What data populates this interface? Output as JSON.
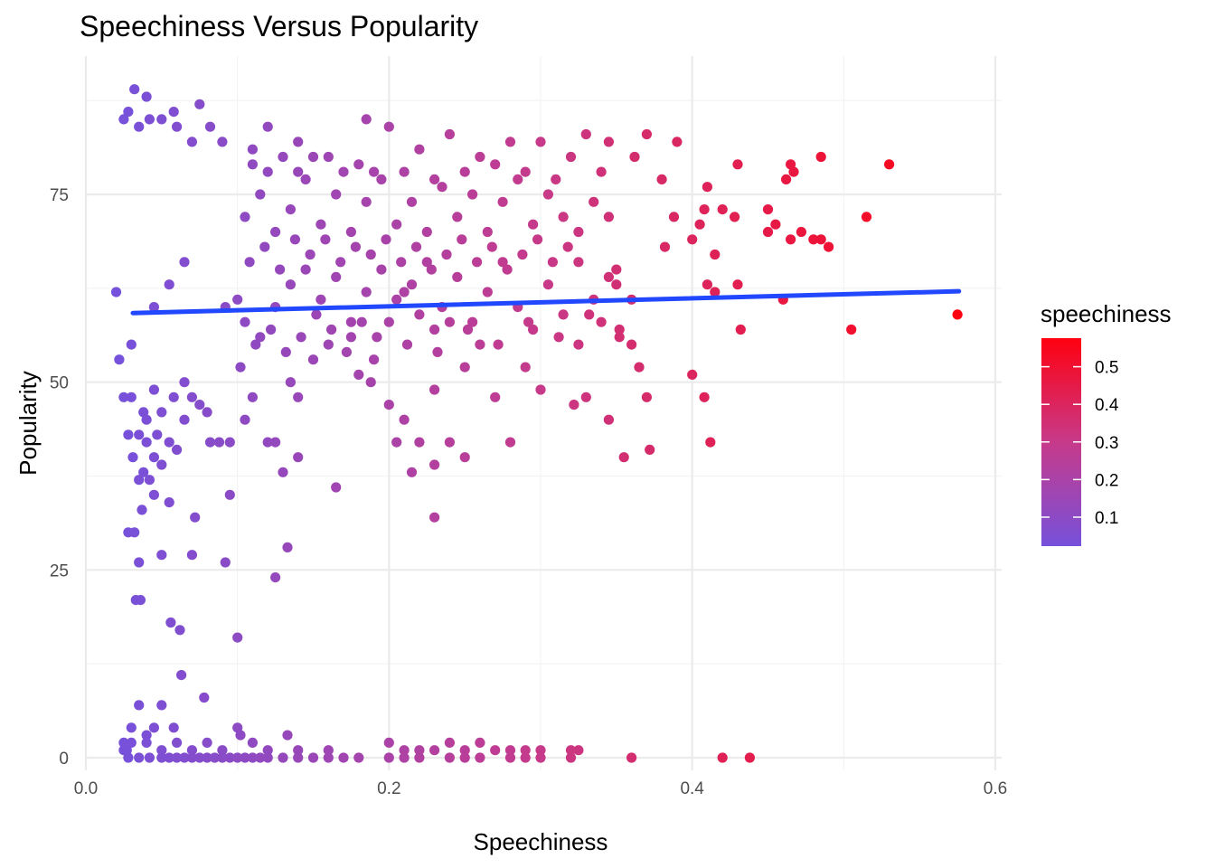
{
  "colors": {
    "low": "#7651db",
    "high": "#ff0010",
    "trend": "#2148ff",
    "grid_major": "#ebebeb",
    "grid_minor": "#f3f3f3"
  },
  "chart_data": {
    "type": "scatter",
    "title": "Speechiness Versus Popularity",
    "xlabel": "Speechiness",
    "ylabel": "Popularity",
    "xlim": [
      0.0,
      0.6
    ],
    "ylim": [
      0,
      90
    ],
    "x_ticks": [
      0.0,
      0.2,
      0.4,
      0.6
    ],
    "x_tick_labels": [
      "0.0",
      "0.2",
      "0.4",
      "0.6"
    ],
    "y_ticks": [
      0,
      25,
      50,
      75
    ],
    "y_tick_labels": [
      "0",
      "25",
      "50",
      "75"
    ],
    "grid": true,
    "legend": {
      "title": "speechiness",
      "placement": "right",
      "type": "continuous-color",
      "range": [
        0.023,
        0.576
      ],
      "ticks": [
        0.1,
        0.2,
        0.3,
        0.4,
        0.5
      ],
      "tick_labels": [
        "0.1",
        "0.2",
        "0.3",
        "0.4",
        "0.5"
      ]
    },
    "trend_line": {
      "type": "linear",
      "x": [
        0.031,
        0.576
      ],
      "y": [
        59.2,
        62.1
      ]
    },
    "points": [
      [
        0.032,
        89
      ],
      [
        0.04,
        88
      ],
      [
        0.075,
        87
      ],
      [
        0.058,
        86
      ],
      [
        0.028,
        86
      ],
      [
        0.025,
        85
      ],
      [
        0.05,
        85
      ],
      [
        0.042,
        85
      ],
      [
        0.035,
        84
      ],
      [
        0.06,
        84
      ],
      [
        0.082,
        84
      ],
      [
        0.12,
        84
      ],
      [
        0.185,
        85
      ],
      [
        0.2,
        84
      ],
      [
        0.07,
        82
      ],
      [
        0.09,
        82
      ],
      [
        0.11,
        81
      ],
      [
        0.14,
        82
      ],
      [
        0.15,
        80
      ],
      [
        0.16,
        80
      ],
      [
        0.18,
        79
      ],
      [
        0.22,
        81
      ],
      [
        0.24,
        83
      ],
      [
        0.26,
        80
      ],
      [
        0.28,
        82
      ],
      [
        0.3,
        82
      ],
      [
        0.33,
        83
      ],
      [
        0.345,
        82
      ],
      [
        0.37,
        83
      ],
      [
        0.39,
        82
      ],
      [
        0.362,
        80
      ],
      [
        0.38,
        77
      ],
      [
        0.31,
        77
      ],
      [
        0.32,
        80
      ],
      [
        0.34,
        78
      ],
      [
        0.43,
        79
      ],
      [
        0.465,
        79
      ],
      [
        0.467,
        78
      ],
      [
        0.462,
        77
      ],
      [
        0.485,
        80
      ],
      [
        0.53,
        79
      ],
      [
        0.41,
        76
      ],
      [
        0.408,
        73
      ],
      [
        0.42,
        73
      ],
      [
        0.428,
        72
      ],
      [
        0.45,
        73
      ],
      [
        0.455,
        71
      ],
      [
        0.45,
        70
      ],
      [
        0.465,
        69
      ],
      [
        0.472,
        70
      ],
      [
        0.48,
        69
      ],
      [
        0.485,
        69
      ],
      [
        0.49,
        68
      ],
      [
        0.515,
        72
      ],
      [
        0.415,
        67
      ],
      [
        0.4,
        69
      ],
      [
        0.405,
        71
      ],
      [
        0.388,
        72
      ],
      [
        0.382,
        68
      ],
      [
        0.41,
        63
      ],
      [
        0.415,
        62
      ],
      [
        0.43,
        63
      ],
      [
        0.46,
        61
      ],
      [
        0.575,
        59
      ],
      [
        0.505,
        57
      ],
      [
        0.432,
        57
      ],
      [
        0.4,
        51
      ],
      [
        0.408,
        48
      ],
      [
        0.412,
        42
      ],
      [
        0.37,
        48
      ],
      [
        0.372,
        41
      ],
      [
        0.355,
        40
      ],
      [
        0.345,
        45
      ],
      [
        0.33,
        48
      ],
      [
        0.322,
        47
      ],
      [
        0.365,
        52
      ],
      [
        0.36,
        55
      ],
      [
        0.35,
        63
      ],
      [
        0.35,
        65
      ],
      [
        0.36,
        61
      ],
      [
        0.352,
        57
      ],
      [
        0.34,
        58
      ],
      [
        0.325,
        55
      ],
      [
        0.3,
        49
      ],
      [
        0.29,
        52
      ],
      [
        0.28,
        42
      ],
      [
        0.27,
        48
      ],
      [
        0.26,
        55
      ],
      [
        0.25,
        52
      ],
      [
        0.24,
        58
      ],
      [
        0.23,
        57
      ],
      [
        0.22,
        59
      ],
      [
        0.21,
        62
      ],
      [
        0.2,
        58
      ],
      [
        0.19,
        53
      ],
      [
        0.18,
        51
      ],
      [
        0.175,
        56
      ],
      [
        0.16,
        55
      ],
      [
        0.15,
        53
      ],
      [
        0.23,
        49
      ],
      [
        0.21,
        45
      ],
      [
        0.22,
        42
      ],
      [
        0.205,
        42
      ],
      [
        0.23,
        39
      ],
      [
        0.215,
        38
      ],
      [
        0.23,
        32
      ],
      [
        0.24,
        42
      ],
      [
        0.25,
        40
      ],
      [
        0.2,
        47
      ],
      [
        0.188,
        50
      ],
      [
        0.165,
        36
      ],
      [
        0.14,
        40
      ],
      [
        0.13,
        38
      ],
      [
        0.125,
        42
      ],
      [
        0.14,
        48
      ],
      [
        0.135,
        50
      ],
      [
        0.095,
        35
      ],
      [
        0.092,
        26
      ],
      [
        0.125,
        24
      ],
      [
        0.133,
        28
      ],
      [
        0.1,
        16
      ],
      [
        0.07,
        27
      ],
      [
        0.05,
        27
      ],
      [
        0.072,
        32
      ],
      [
        0.055,
        34
      ],
      [
        0.045,
        35
      ],
      [
        0.035,
        37
      ],
      [
        0.037,
        33
      ],
      [
        0.032,
        30
      ],
      [
        0.028,
        30
      ],
      [
        0.035,
        26
      ],
      [
        0.033,
        21
      ],
      [
        0.036,
        21
      ],
      [
        0.056,
        18
      ],
      [
        0.062,
        17
      ],
      [
        0.063,
        11
      ],
      [
        0.078,
        8
      ],
      [
        0.092,
        60
      ],
      [
        0.03,
        48
      ],
      [
        0.038,
        46
      ],
      [
        0.04,
        45
      ],
      [
        0.04,
        42
      ],
      [
        0.045,
        40
      ],
      [
        0.055,
        42
      ],
      [
        0.06,
        41
      ],
      [
        0.042,
        37
      ],
      [
        0.05,
        39
      ],
      [
        0.047,
        43
      ],
      [
        0.065,
        45
      ],
      [
        0.08,
        46
      ],
      [
        0.082,
        42
      ],
      [
        0.088,
        42
      ],
      [
        0.095,
        42
      ],
      [
        0.105,
        45
      ],
      [
        0.11,
        48
      ],
      [
        0.12,
        42
      ],
      [
        0.02,
        62
      ],
      [
        0.022,
        53
      ],
      [
        0.025,
        48
      ],
      [
        0.03,
        55
      ],
      [
        0.028,
        43
      ],
      [
        0.031,
        40
      ],
      [
        0.035,
        43
      ],
      [
        0.038,
        38
      ],
      [
        0.045,
        49
      ],
      [
        0.05,
        46
      ],
      [
        0.058,
        48
      ],
      [
        0.065,
        50
      ],
      [
        0.07,
        48
      ],
      [
        0.075,
        47
      ],
      [
        0.035,
        7
      ],
      [
        0.04,
        3
      ],
      [
        0.05,
        7
      ],
      [
        0.058,
        4
      ],
      [
        0.045,
        4
      ],
      [
        0.03,
        4
      ],
      [
        0.025,
        2
      ],
      [
        0.025,
        1
      ],
      [
        0.027,
        1
      ],
      [
        0.028,
        0
      ],
      [
        0.035,
        0
      ],
      [
        0.042,
        0
      ],
      [
        0.05,
        0
      ],
      [
        0.055,
        0
      ],
      [
        0.06,
        0
      ],
      [
        0.065,
        0
      ],
      [
        0.07,
        0
      ],
      [
        0.075,
        0
      ],
      [
        0.08,
        0
      ],
      [
        0.085,
        0
      ],
      [
        0.09,
        0
      ],
      [
        0.095,
        0
      ],
      [
        0.1,
        0
      ],
      [
        0.105,
        0
      ],
      [
        0.11,
        0
      ],
      [
        0.115,
        0
      ],
      [
        0.12,
        0
      ],
      [
        0.13,
        0
      ],
      [
        0.14,
        0
      ],
      [
        0.15,
        0
      ],
      [
        0.16,
        0
      ],
      [
        0.17,
        0
      ],
      [
        0.18,
        0
      ],
      [
        0.2,
        0
      ],
      [
        0.21,
        0
      ],
      [
        0.22,
        0
      ],
      [
        0.24,
        0
      ],
      [
        0.25,
        0
      ],
      [
        0.26,
        0
      ],
      [
        0.28,
        0
      ],
      [
        0.29,
        0
      ],
      [
        0.3,
        0
      ],
      [
        0.32,
        0
      ],
      [
        0.36,
        0
      ],
      [
        0.42,
        0
      ],
      [
        0.438,
        0
      ],
      [
        0.03,
        2
      ],
      [
        0.04,
        2
      ],
      [
        0.05,
        1
      ],
      [
        0.06,
        2
      ],
      [
        0.07,
        1
      ],
      [
        0.08,
        2
      ],
      [
        0.09,
        1
      ],
      [
        0.1,
        4
      ],
      [
        0.102,
        3
      ],
      [
        0.11,
        2
      ],
      [
        0.12,
        1
      ],
      [
        0.133,
        3
      ],
      [
        0.14,
        1
      ],
      [
        0.16,
        1
      ],
      [
        0.2,
        2
      ],
      [
        0.21,
        1
      ],
      [
        0.22,
        1
      ],
      [
        0.23,
        1
      ],
      [
        0.24,
        2
      ],
      [
        0.25,
        1
      ],
      [
        0.26,
        2
      ],
      [
        0.27,
        1
      ],
      [
        0.28,
        1
      ],
      [
        0.29,
        1
      ],
      [
        0.3,
        1
      ],
      [
        0.32,
        1
      ],
      [
        0.325,
        1
      ],
      [
        0.045,
        60
      ],
      [
        0.055,
        63
      ],
      [
        0.065,
        66
      ],
      [
        0.1,
        61
      ],
      [
        0.105,
        58
      ],
      [
        0.115,
        56
      ],
      [
        0.125,
        60
      ],
      [
        0.135,
        63
      ],
      [
        0.145,
        65
      ],
      [
        0.155,
        61
      ],
      [
        0.165,
        64
      ],
      [
        0.175,
        58
      ],
      [
        0.185,
        62
      ],
      [
        0.195,
        65
      ],
      [
        0.205,
        61
      ],
      [
        0.215,
        63
      ],
      [
        0.225,
        66
      ],
      [
        0.235,
        60
      ],
      [
        0.245,
        64
      ],
      [
        0.255,
        58
      ],
      [
        0.265,
        62
      ],
      [
        0.275,
        66
      ],
      [
        0.285,
        60
      ],
      [
        0.295,
        57
      ],
      [
        0.305,
        63
      ],
      [
        0.315,
        59
      ],
      [
        0.325,
        66
      ],
      [
        0.335,
        61
      ],
      [
        0.345,
        64
      ],
      [
        0.105,
        72
      ],
      [
        0.115,
        75
      ],
      [
        0.125,
        70
      ],
      [
        0.135,
        73
      ],
      [
        0.145,
        77
      ],
      [
        0.155,
        71
      ],
      [
        0.165,
        75
      ],
      [
        0.175,
        70
      ],
      [
        0.185,
        74
      ],
      [
        0.195,
        77
      ],
      [
        0.205,
        71
      ],
      [
        0.215,
        74
      ],
      [
        0.225,
        70
      ],
      [
        0.235,
        76
      ],
      [
        0.245,
        72
      ],
      [
        0.255,
        75
      ],
      [
        0.265,
        70
      ],
      [
        0.275,
        74
      ],
      [
        0.285,
        77
      ],
      [
        0.295,
        71
      ],
      [
        0.305,
        75
      ],
      [
        0.315,
        72
      ],
      [
        0.325,
        70
      ],
      [
        0.335,
        74
      ],
      [
        0.345,
        72
      ],
      [
        0.108,
        66
      ],
      [
        0.118,
        68
      ],
      [
        0.128,
        65
      ],
      [
        0.138,
        69
      ],
      [
        0.148,
        67
      ],
      [
        0.158,
        69
      ],
      [
        0.168,
        66
      ],
      [
        0.178,
        68
      ],
      [
        0.188,
        67
      ],
      [
        0.198,
        69
      ],
      [
        0.208,
        66
      ],
      [
        0.218,
        68
      ],
      [
        0.228,
        65
      ],
      [
        0.238,
        67
      ],
      [
        0.248,
        69
      ],
      [
        0.258,
        66
      ],
      [
        0.268,
        68
      ],
      [
        0.278,
        65
      ],
      [
        0.288,
        67
      ],
      [
        0.298,
        69
      ],
      [
        0.308,
        66
      ],
      [
        0.318,
        68
      ],
      [
        0.11,
        79
      ],
      [
        0.12,
        78
      ],
      [
        0.13,
        80
      ],
      [
        0.14,
        78
      ],
      [
        0.17,
        78
      ],
      [
        0.19,
        78
      ],
      [
        0.21,
        78
      ],
      [
        0.23,
        77
      ],
      [
        0.25,
        78
      ],
      [
        0.27,
        79
      ],
      [
        0.29,
        78
      ],
      [
        0.102,
        52
      ],
      [
        0.112,
        55
      ],
      [
        0.122,
        57
      ],
      [
        0.132,
        54
      ],
      [
        0.142,
        56
      ],
      [
        0.152,
        59
      ],
      [
        0.162,
        57
      ],
      [
        0.172,
        54
      ],
      [
        0.182,
        58
      ],
      [
        0.192,
        56
      ],
      [
        0.212,
        55
      ],
      [
        0.232,
        54
      ],
      [
        0.252,
        57
      ],
      [
        0.272,
        55
      ],
      [
        0.292,
        58
      ],
      [
        0.312,
        56
      ],
      [
        0.332,
        59
      ],
      [
        0.352,
        56
      ]
    ]
  }
}
